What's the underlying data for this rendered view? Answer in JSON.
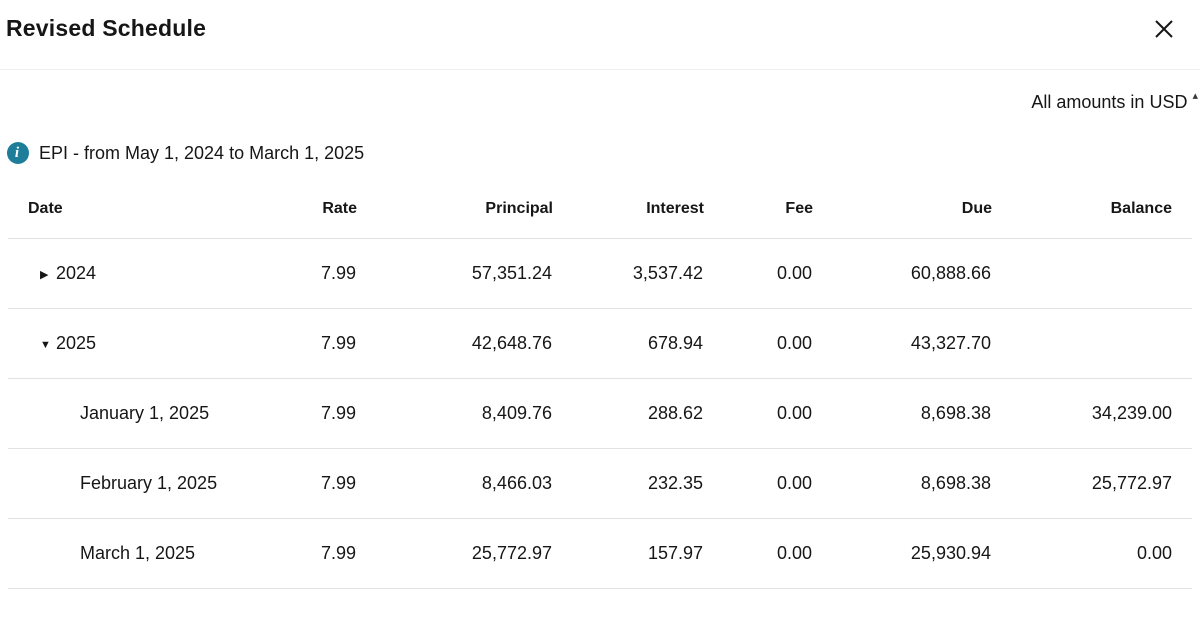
{
  "modal": {
    "title": "Revised Schedule",
    "close_label": "close",
    "amounts_note": "All amounts in USD",
    "amounts_note_marker": "▴",
    "info_line": "EPI - from May 1, 2024 to March 1, 2025",
    "info_icon_glyph": "i"
  },
  "table": {
    "columns": [
      "Date",
      "Rate",
      "Principal",
      "Interest",
      "Fee",
      "Due",
      "Balance"
    ],
    "rows": [
      {
        "type": "year",
        "expanded": false,
        "date": "2024",
        "rate": "7.99",
        "principal": "57,351.24",
        "interest": "3,537.42",
        "fee": "0.00",
        "due": "60,888.66",
        "balance": ""
      },
      {
        "type": "year",
        "expanded": true,
        "date": "2025",
        "rate": "7.99",
        "principal": "42,648.76",
        "interest": "678.94",
        "fee": "0.00",
        "due": "43,327.70",
        "balance": ""
      },
      {
        "type": "month",
        "date": "January 1, 2025",
        "rate": "7.99",
        "principal": "8,409.76",
        "interest": "288.62",
        "fee": "0.00",
        "due": "8,698.38",
        "balance": "34,239.00"
      },
      {
        "type": "month",
        "date": "February 1, 2025",
        "rate": "7.99",
        "principal": "8,466.03",
        "interest": "232.35",
        "fee": "0.00",
        "due": "8,698.38",
        "balance": "25,772.97"
      },
      {
        "type": "month",
        "date": "March 1, 2025",
        "rate": "7.99",
        "principal": "25,772.97",
        "interest": "157.97",
        "fee": "0.00",
        "due": "25,930.94",
        "balance": "0.00"
      }
    ]
  },
  "icons": {
    "expand": "▶",
    "collapse": "▼"
  },
  "colors": {
    "text": "#161616",
    "info_accent": "#1e7e9a",
    "divider": "#e2e2e2"
  }
}
